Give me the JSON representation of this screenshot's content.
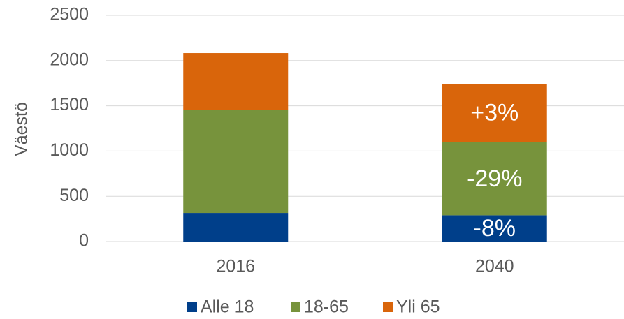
{
  "chart_data": {
    "type": "stacked_bar",
    "y_label": "Väestö",
    "categories": [
      "2016",
      "2040"
    ],
    "series": [
      {
        "name": "Alle 18",
        "color": "#003f8a",
        "values": [
          316,
          290
        ]
      },
      {
        "name": "18-65",
        "color": "#77933c",
        "values": [
          1142,
          812
        ]
      },
      {
        "name": "Yli 65",
        "color": "#d9650b",
        "values": [
          625,
          641
        ]
      }
    ],
    "annotations": [
      "-8%",
      "-29%",
      "+3%"
    ],
    "ylim": [
      0,
      2500
    ],
    "yticks": [
      0,
      500,
      1000,
      1500,
      2000,
      2500
    ],
    "grid": true,
    "legend": "bottom"
  }
}
